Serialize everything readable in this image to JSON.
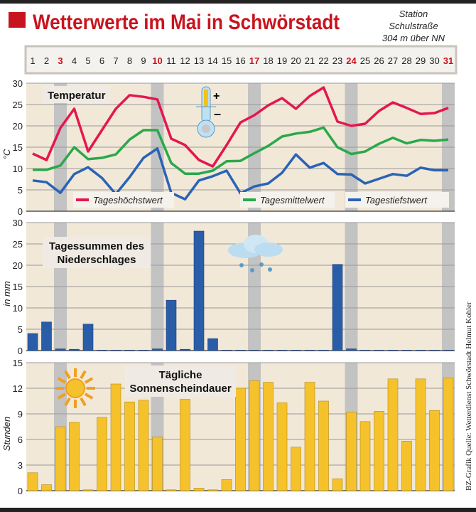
{
  "title": "Wetterwerte im Mai in Schwörstadt",
  "station": [
    "Station",
    "Schulstraße",
    "304 m über NN"
  ],
  "credit": "BZ-Grafik   Quelle: Wetterdienst Schwörstadt Helmut Kohler",
  "colors": {
    "high": "#e4174d",
    "mean": "#2aa84a",
    "low": "#2a63b5",
    "rain": "#2a5da8",
    "sun": "#f6c22c",
    "title": "#c8141e",
    "bg": "#f1e8d8",
    "sunday": "#c3c3c3"
  },
  "days": [
    "1",
    "2",
    "3",
    "4",
    "5",
    "6",
    "7",
    "8",
    "9",
    "10",
    "11",
    "12",
    "13",
    "14",
    "15",
    "16",
    "17",
    "18",
    "19",
    "20",
    "21",
    "22",
    "23",
    "24",
    "25",
    "26",
    "27",
    "28",
    "29",
    "30",
    "31"
  ],
  "sundays": [
    3,
    10,
    17,
    24,
    31
  ],
  "chart_data": [
    {
      "type": "line",
      "title": "Temperatur",
      "ylabel": "°C",
      "ylim": [
        0,
        30
      ],
      "yticks": [
        "0",
        "5",
        "10",
        "15",
        "20",
        "25",
        "30"
      ],
      "x": [
        1,
        2,
        3,
        4,
        5,
        6,
        7,
        8,
        9,
        10,
        11,
        12,
        13,
        14,
        15,
        16,
        17,
        18,
        19,
        20,
        21,
        22,
        23,
        24,
        25,
        26,
        27,
        28,
        29,
        30,
        31
      ],
      "series": [
        {
          "name": "Tageshöchstwert",
          "values": [
            13.5,
            12,
            19.5,
            24,
            14,
            19,
            24,
            27.2,
            26.8,
            26.2,
            17,
            15.5,
            12,
            10.5,
            15.5,
            20.8,
            22.5,
            24.8,
            26.5,
            24,
            27,
            29,
            21,
            20,
            20.5,
            23.5,
            25.5,
            24.2,
            22.8,
            23,
            24.2
          ]
        },
        {
          "name": "Tagesmittelwert",
          "values": [
            9.7,
            9.7,
            10.7,
            15,
            12.2,
            12.5,
            13.3,
            16.8,
            19,
            19,
            11.3,
            8.8,
            8.8,
            9.5,
            11.7,
            11.8,
            13.6,
            15.3,
            17.5,
            18.2,
            18.6,
            19.6,
            15,
            13.4,
            14,
            15.8,
            17.2,
            15.9,
            16.7,
            16.5,
            16.8
          ]
        },
        {
          "name": "Tagestiefstwert",
          "values": [
            7.2,
            6.8,
            4.3,
            8.7,
            10.3,
            7.8,
            4,
            8,
            12.5,
            14.7,
            4.3,
            2.8,
            7.2,
            8.2,
            9.5,
            4.2,
            5.8,
            6.5,
            9,
            13.3,
            10.2,
            11.3,
            8.7,
            8.6,
            6.5,
            7.6,
            8.7,
            8.3,
            10.2,
            9.6,
            9.6
          ]
        }
      ]
    },
    {
      "type": "bar",
      "title": "Tagessummen des Niederschlages",
      "title_lines": [
        "Tagessummen des",
        "Niederschlages"
      ],
      "ylabel": "in mm",
      "ylim": [
        0,
        30
      ],
      "yticks": [
        "0",
        "5",
        "10",
        "15",
        "20",
        "25",
        "30"
      ],
      "values": [
        4,
        6.7,
        0.4,
        0.3,
        6.2,
        0.1,
        0.1,
        0.1,
        0.1,
        0.4,
        11.8,
        0.3,
        28,
        2.8,
        0.1,
        0.1,
        0.1,
        0.1,
        0.1,
        0.1,
        0.1,
        0.1,
        20.2,
        0.4,
        0.1,
        0.1,
        0.1,
        0.1,
        0.1,
        0.1,
        0.1
      ]
    },
    {
      "type": "bar",
      "title": "Tägliche Sonnenscheindauer",
      "title_lines": [
        "Tägliche",
        "Sonnenscheindauer"
      ],
      "ylabel": "Stunden",
      "ylim": [
        0,
        15
      ],
      "yticks": [
        "0",
        "3",
        "6",
        "9",
        "12",
        "15"
      ],
      "values": [
        2.1,
        0.7,
        7.5,
        8,
        0.1,
        8.6,
        12.5,
        10.4,
        10.6,
        6.3,
        0.1,
        10.7,
        0.3,
        0.1,
        1.3,
        12,
        12.9,
        12.7,
        10.3,
        5.1,
        12.7,
        10.5,
        1.4,
        9.2,
        8.1,
        9.3,
        13.1,
        5.8,
        13.1,
        9.4,
        13.2
      ]
    }
  ]
}
